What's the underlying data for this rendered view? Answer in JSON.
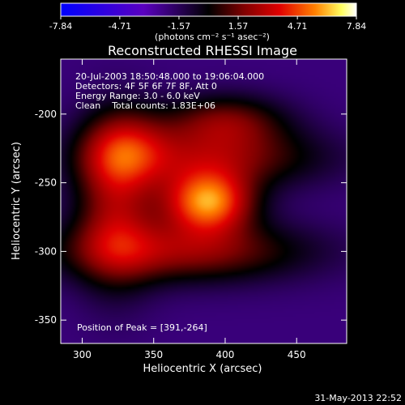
{
  "chart_data": {
    "type": "heatmap",
    "title": "Reconstructed RHESSI Image",
    "xlabel": "Heliocentric X (arcsec)",
    "ylabel": "Heliocentric Y (arcsec)",
    "xlim": [
      285,
      485
    ],
    "ylim": [
      -367,
      -160
    ],
    "x_ticks": [
      300,
      350,
      400,
      450
    ],
    "y_ticks": [
      -200,
      -250,
      -300,
      -350
    ],
    "colorbar": {
      "ticks": [
        "-7.84",
        "-4.71",
        "-1.57",
        "1.57",
        "4.71",
        "7.84"
      ],
      "range": [
        -7.84,
        7.84
      ],
      "unit_label": "(photons cm⁻² s⁻¹ asec⁻²)",
      "colormap": [
        "#0000ff",
        "#5a00c0",
        "#000000",
        "#800000",
        "#e00000",
        "#ff8000",
        "#ffff60",
        "#ffffff"
      ]
    },
    "annotations": [
      "20-Jul-2003 18:50:48.000 to 19:06:04.000",
      "Detectors: 4F 5F 6F 7F 8F, Att 0",
      "Energy Range: 3.0 - 6.0 keV",
      "Clean    Total counts: 1.83E+06"
    ],
    "peak_text": "Position of Peak = [391,-264]",
    "peak": {
      "x": 391,
      "y": -264,
      "value": 7.84
    },
    "sources": [
      {
        "x": 388,
        "y": -264,
        "sx": 22,
        "sy": 16,
        "amp": 5.4
      },
      {
        "x": 392,
        "y": -232,
        "sx": 55,
        "sy": 16,
        "amp": 1.6
      },
      {
        "x": 370,
        "y": -300,
        "sx": 62,
        "sy": 16,
        "amp": 2.1
      },
      {
        "x": 323,
        "y": -268,
        "sx": 20,
        "sy": 40,
        "amp": 2.0
      },
      {
        "x": 400,
        "y": -205,
        "sx": 30,
        "sy": 14,
        "amp": 1.4
      },
      {
        "x": 330,
        "y": -223,
        "sx": 22,
        "sy": 20,
        "amp": 1.1
      }
    ],
    "background": -2.2
  },
  "timestamp": "31-May-2013 22:52"
}
